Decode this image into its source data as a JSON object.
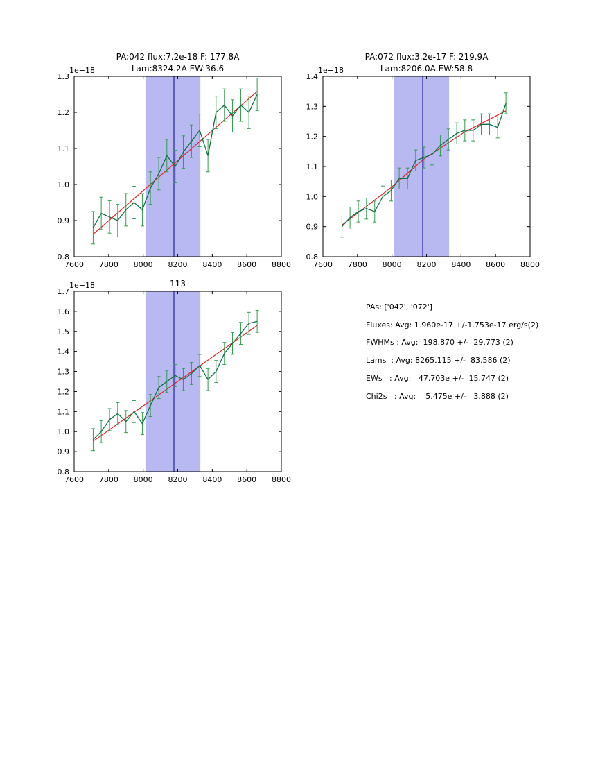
{
  "colors": {
    "span": "#b9b9f2",
    "vline": "#2e2ea0",
    "fit": "#e02420",
    "line": "#0e7040",
    "err": "#2f9e4e",
    "axis": "#000000"
  },
  "chart_data": [
    {
      "type": "line",
      "title": [
        "PA:042 flux:7.2e-18 F: 177.8A",
        "Lam:8324.2A EW:36.6"
      ],
      "offset": "1e−18",
      "xlabel": "",
      "ylabel": "",
      "xlim": [
        7600,
        8800
      ],
      "ylim": [
        0.8,
        1.3
      ],
      "xticks": [
        7600,
        7800,
        8000,
        8200,
        8400,
        8600,
        8800
      ],
      "yticks": [
        0.8,
        0.9,
        1.0,
        1.1,
        1.2,
        1.3
      ],
      "span": [
        8013,
        8331
      ],
      "vline": 8178,
      "x": [
        7710,
        7757,
        7805,
        7852,
        7900,
        7947,
        7995,
        8042,
        8090,
        8137,
        8185,
        8232,
        8280,
        8327,
        8375,
        8422,
        8470,
        8517,
        8565,
        8612,
        8660
      ],
      "y": [
        0.88,
        0.92,
        0.91,
        0.9,
        0.93,
        0.95,
        0.93,
        0.99,
        1.03,
        1.08,
        1.05,
        1.09,
        1.12,
        1.15,
        1.08,
        1.2,
        1.22,
        1.19,
        1.22,
        1.2,
        1.25
      ],
      "yerr": 0.045,
      "fit": {
        "x": [
          7710,
          8660
        ],
        "y": [
          0.862,
          1.258
        ]
      }
    },
    {
      "type": "line",
      "title": [
        "PA:072 flux:3.2e-17 F: 219.9A",
        "Lam:8206.0A EW:58.8"
      ],
      "offset": "1e−18",
      "xlabel": "",
      "ylabel": "",
      "xlim": [
        7600,
        8800
      ],
      "ylim": [
        0.8,
        1.4
      ],
      "xticks": [
        7600,
        7800,
        8000,
        8200,
        8400,
        8600,
        8800
      ],
      "yticks": [
        0.8,
        0.9,
        1.0,
        1.1,
        1.2,
        1.3,
        1.4
      ],
      "span": [
        8013,
        8331
      ],
      "vline": 8178,
      "x": [
        7710,
        7757,
        7805,
        7852,
        7900,
        7947,
        7995,
        8042,
        8090,
        8137,
        8185,
        8232,
        8280,
        8327,
        8375,
        8422,
        8470,
        8517,
        8565,
        8612,
        8660
      ],
      "y": [
        0.9,
        0.93,
        0.95,
        0.96,
        0.95,
        1.0,
        1.02,
        1.06,
        1.06,
        1.12,
        1.13,
        1.14,
        1.17,
        1.19,
        1.21,
        1.22,
        1.22,
        1.24,
        1.24,
        1.23,
        1.31
      ],
      "yerr": 0.035,
      "fit": {
        "x": [
          7710,
          7995,
          8185,
          8422,
          8660
        ],
        "y": [
          0.905,
          1.03,
          1.125,
          1.215,
          1.285
        ]
      }
    },
    {
      "type": "line",
      "title": [
        "113"
      ],
      "offset": "1e−18",
      "xlabel": "",
      "ylabel": "",
      "xlim": [
        7600,
        8800
      ],
      "ylim": [
        0.8,
        1.7
      ],
      "xticks": [
        7600,
        7800,
        8000,
        8200,
        8400,
        8600,
        8800
      ],
      "yticks": [
        0.8,
        0.9,
        1.0,
        1.1,
        1.2,
        1.3,
        1.4,
        1.5,
        1.6,
        1.7
      ],
      "span": [
        8013,
        8331
      ],
      "vline": 8178,
      "x": [
        7710,
        7757,
        7805,
        7852,
        7900,
        7947,
        7995,
        8042,
        8090,
        8137,
        8185,
        8232,
        8280,
        8327,
        8375,
        8422,
        8470,
        8517,
        8565,
        8612,
        8660
      ],
      "y": [
        0.96,
        1.0,
        1.06,
        1.09,
        1.05,
        1.1,
        1.04,
        1.13,
        1.22,
        1.25,
        1.28,
        1.26,
        1.29,
        1.33,
        1.26,
        1.3,
        1.39,
        1.44,
        1.49,
        1.54,
        1.55
      ],
      "yerr": 0.055,
      "fit": {
        "x": [
          7710,
          8660
        ],
        "y": [
          0.952,
          1.53
        ]
      }
    }
  ],
  "stats": {
    "lines": [
      "PAs: ['042', '072']",
      "Fluxes: Avg: 1.960e-17 +/-1.753e-17 erg/s(2)",
      "FWHMs : Avg:  198.870 +/-  29.773 (2)",
      "Lams  : Avg: 8265.115 +/-  83.586 (2)",
      "EWs   : Avg:   47.703e +/-  15.747 (2)",
      "Chi2s   : Avg:    5.475e +/-   3.888 (2)"
    ]
  }
}
